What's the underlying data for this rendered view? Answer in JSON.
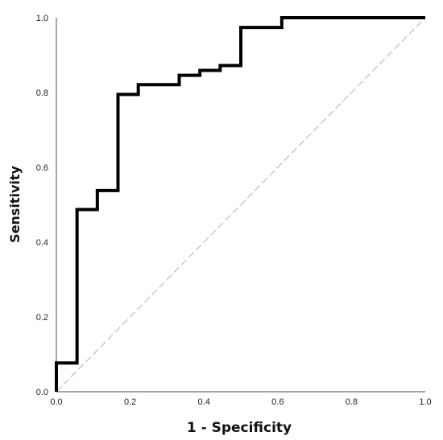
{
  "chart_data": {
    "type": "line",
    "subtype": "roc-step",
    "xlabel": "1 - Specificity",
    "ylabel": "Sensitivity",
    "xlim": [
      0.0,
      1.0
    ],
    "ylim": [
      0.0,
      1.0
    ],
    "x_ticks": [
      "0.0",
      "0.2",
      "0.4",
      "0.6",
      "0.8",
      "1.0"
    ],
    "y_ticks": [
      "0.0",
      "0.2",
      "0.4",
      "0.6",
      "0.8",
      "1.0"
    ],
    "x_tick_values": [
      0.0,
      0.2,
      0.4,
      0.6,
      0.8,
      1.0
    ],
    "y_tick_values": [
      0.0,
      0.2,
      0.4,
      0.6,
      0.8,
      1.0
    ],
    "grid": false,
    "series": [
      {
        "x": [
          0.0,
          0.0,
          0.056,
          0.056,
          0.111,
          0.111,
          0.167,
          0.167,
          0.222,
          0.222,
          0.333,
          0.333,
          0.389,
          0.389,
          0.444,
          0.444,
          0.5,
          0.5,
          0.611,
          0.611,
          1.0
        ],
        "y": [
          0.0,
          0.077,
          0.077,
          0.487,
          0.487,
          0.538,
          0.538,
          0.795,
          0.795,
          0.821,
          0.821,
          0.846,
          0.846,
          0.859,
          0.859,
          0.872,
          0.872,
          0.974,
          0.974,
          1.0,
          1.0
        ],
        "color": "#000000"
      },
      {
        "x": [
          0.0,
          1.0
        ],
        "y": [
          0.0,
          1.0
        ],
        "color": "#bdbdbd",
        "dashed": true
      }
    ]
  }
}
